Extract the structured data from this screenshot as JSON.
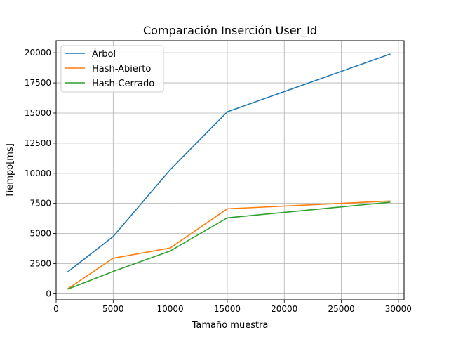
{
  "chart_data": {
    "type": "line",
    "title": "Comparación Inserción User_Id",
    "xlabel": "Tamaño muestra",
    "ylabel": "Tiempo[ms]",
    "x": [
      1000,
      5000,
      10000,
      15000,
      29300
    ],
    "xlim": [
      0,
      30500
    ],
    "ylim": [
      -500,
      21000
    ],
    "xticks": [
      0,
      5000,
      10000,
      15000,
      20000,
      25000,
      30000
    ],
    "yticks": [
      0,
      2500,
      5000,
      7500,
      10000,
      12500,
      15000,
      17500,
      20000
    ],
    "grid": true,
    "legend_position": "top-left",
    "series": [
      {
        "name": "Árbol",
        "color": "#1f77b4",
        "values": [
          1800,
          4750,
          10300,
          15100,
          19900
        ]
      },
      {
        "name": "Hash-Abierto",
        "color": "#ff7f0e",
        "values": [
          400,
          2950,
          3800,
          7050,
          7700
        ]
      },
      {
        "name": "Hash-Cerrado",
        "color": "#2ca02c",
        "values": [
          380,
          1850,
          3550,
          6300,
          7600
        ]
      }
    ]
  }
}
